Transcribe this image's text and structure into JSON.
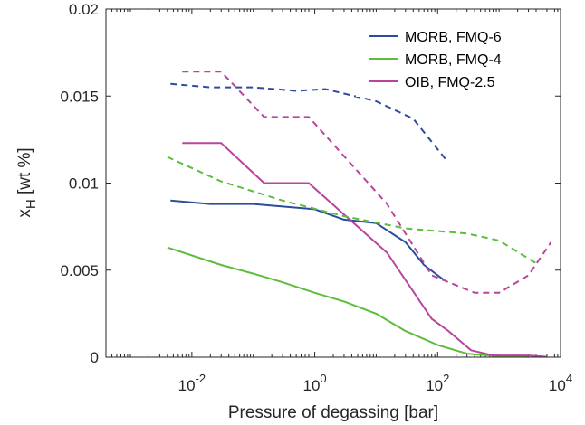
{
  "chart_data": {
    "type": "line",
    "xlabel": "Pressure of degassing [bar]",
    "ylabel_main": "x",
    "ylabel_sub": "H",
    "ylabel_rest": " [wt %]",
    "xscale": "log",
    "xlim": [
      0.0004,
      10000
    ],
    "ylim": [
      0,
      0.02
    ],
    "x_major_ticks": [
      0.01,
      1,
      100,
      10000
    ],
    "x_tick_labels": [
      {
        "base": "10",
        "exp": "-2"
      },
      {
        "base": "10",
        "exp": "0"
      },
      {
        "base": "10",
        "exp": "2"
      },
      {
        "base": "10",
        "exp": "4"
      }
    ],
    "y_ticks": [
      0,
      0.005,
      0.01,
      0.015,
      0.02
    ],
    "y_tick_labels": [
      "0",
      "0.005",
      "0.01",
      "0.015",
      "0.02"
    ],
    "grid": false,
    "legend_position": "top-right",
    "series": [
      {
        "name": "MORB, FMQ-6",
        "color": "#2b4e9b",
        "style": "solid",
        "legend": true,
        "x": [
          0.0045,
          0.02,
          0.1,
          1,
          3,
          10,
          30,
          60,
          130
        ],
        "y": [
          0.009,
          0.0088,
          0.0088,
          0.0085,
          0.0079,
          0.0077,
          0.0066,
          0.0053,
          0.0044
        ]
      },
      {
        "name": "MORB, FMQ-4",
        "color": "#5cbd3a",
        "style": "solid",
        "legend": true,
        "x": [
          0.004,
          0.03,
          0.1,
          0.3,
          1,
          3,
          10,
          30,
          100,
          300,
          1000,
          3000
        ],
        "y": [
          0.0063,
          0.0053,
          0.0048,
          0.0043,
          0.0037,
          0.0032,
          0.0025,
          0.0015,
          0.0007,
          0.0002,
          5e-05,
          2e-05
        ]
      },
      {
        "name": "OIB, FMQ-2.5",
        "color": "#b8449e",
        "style": "solid",
        "legend": true,
        "x": [
          0.007,
          0.03,
          0.15,
          0.8,
          15,
          80,
          150,
          350,
          800,
          3000,
          6000
        ],
        "y": [
          0.0123,
          0.0123,
          0.01,
          0.01,
          0.006,
          0.0022,
          0.0015,
          0.0004,
          0.0001,
          0.0001,
          2e-05
        ]
      },
      {
        "name": "",
        "color": "#2b4e9b",
        "style": "dashed",
        "legend": false,
        "x": [
          0.0045,
          0.02,
          0.1,
          0.5,
          1.5,
          10,
          40,
          140
        ],
        "y": [
          0.0157,
          0.0155,
          0.0155,
          0.0153,
          0.0154,
          0.0147,
          0.0137,
          0.0113
        ]
      },
      {
        "name": "",
        "color": "#5cbd3a",
        "style": "dashed",
        "legend": false,
        "x": [
          0.004,
          0.03,
          0.3,
          3,
          30,
          300,
          1000,
          4000
        ],
        "y": [
          0.0115,
          0.0101,
          0.009,
          0.0081,
          0.0074,
          0.0071,
          0.0067,
          0.0054
        ]
      },
      {
        "name": "",
        "color": "#b8449e",
        "style": "dashed",
        "legend": false,
        "x": [
          0.007,
          0.03,
          0.15,
          0.8,
          15,
          80,
          400,
          1000,
          3000,
          7000
        ],
        "y": [
          0.0164,
          0.0164,
          0.0138,
          0.0138,
          0.0088,
          0.0047,
          0.0037,
          0.0037,
          0.0047,
          0.0066
        ]
      }
    ]
  }
}
